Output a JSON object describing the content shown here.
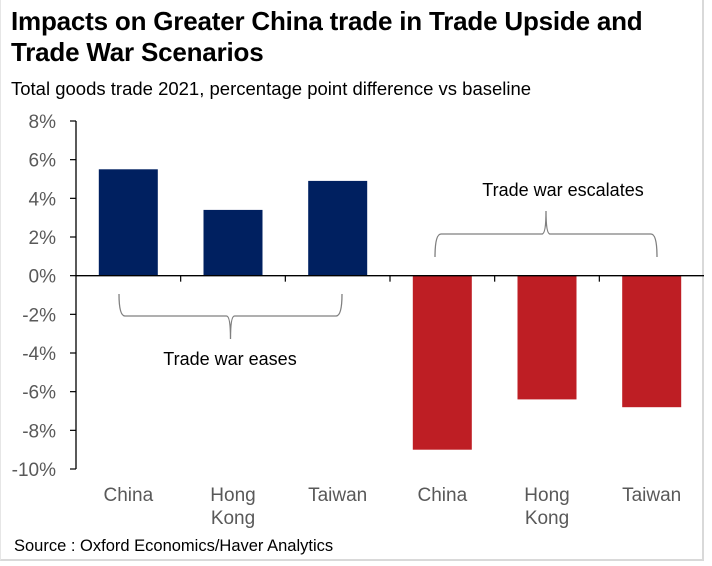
{
  "chart_data": {
    "type": "bar",
    "title": "Impacts on Greater China trade in Trade Upside and Trade War Scenarios",
    "subtitle": "Total goods trade 2021, percentage point difference vs baseline",
    "xlabel": "",
    "ylabel": "",
    "ylim": [
      -10,
      8
    ],
    "yticks": [
      8,
      6,
      4,
      2,
      0,
      -2,
      -4,
      -6,
      -8,
      -10
    ],
    "ytick_labels": [
      "8%",
      "6%",
      "4%",
      "2%",
      "0%",
      "-2%",
      "-4%",
      "-6%",
      "-8%",
      "-10%"
    ],
    "grid": false,
    "categories": [
      "China",
      "Hong Kong",
      "Taiwan",
      "China",
      "Hong Kong",
      "Taiwan"
    ],
    "category_lines": [
      [
        "China"
      ],
      [
        "Hong",
        "Kong"
      ],
      [
        "Taiwan"
      ],
      [
        "China"
      ],
      [
        "Hong",
        "Kong"
      ],
      [
        "Taiwan"
      ]
    ],
    "values": [
      5.5,
      3.4,
      4.9,
      -9.0,
      -6.4,
      -6.8
    ],
    "groups": [
      {
        "name": "Trade war eases",
        "indices": [
          0,
          1,
          2
        ],
        "color": "#002060"
      },
      {
        "name": "Trade war escalates",
        "indices": [
          3,
          4,
          5
        ],
        "color": "#BE1E24"
      }
    ],
    "annotations": [
      "Trade war eases",
      "Trade war escalates"
    ],
    "source": "Source : Oxford Economics/Haver Analytics"
  },
  "colors": {
    "eases": "#002060",
    "escalates": "#BE1E24",
    "axis": "#000000",
    "tick_label": "#595959",
    "bracket": "#7f7f7f"
  }
}
